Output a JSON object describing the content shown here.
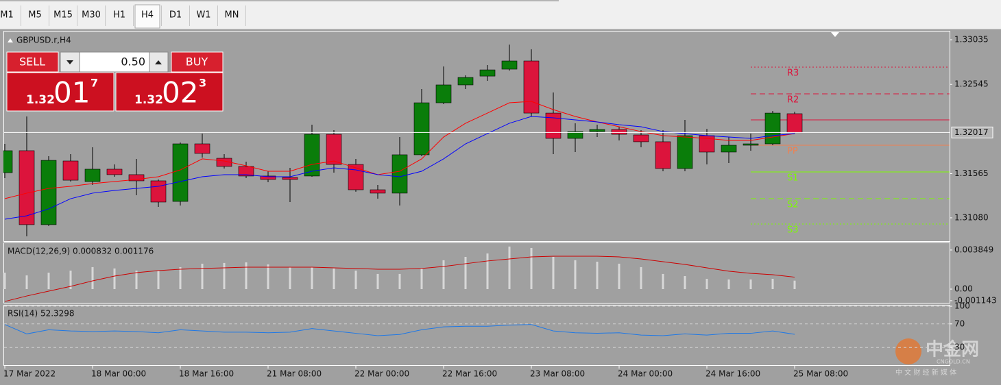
{
  "toolbar": {
    "tabs": [
      "M1",
      "M5",
      "M15",
      "M30",
      "H1",
      "H4",
      "D1",
      "W1",
      "MN"
    ],
    "active_tab": 5
  },
  "trade_panel": {
    "sell": "SELL",
    "buy": "BUY",
    "lot": "0.50",
    "bid": {
      "big": "1.32",
      "pips": "01",
      "fraction": "7"
    },
    "ask": {
      "big": "1.32",
      "pips": "02",
      "fraction": "3"
    }
  },
  "watermark": {
    "logo": "中金网",
    "site": "CNGOLD.CN",
    "tagline": "中 文 财 经 新 媒 体"
  },
  "chart_data": [
    {
      "type": "candlestick",
      "title": "GBPUSD.r,H4",
      "categories": [
        "17 Mar 2022",
        null,
        null,
        null,
        "18 Mar 00:00",
        null,
        null,
        null,
        "18 Mar 16:00",
        null,
        null,
        null,
        "21 Mar 08:00",
        null,
        null,
        null,
        "22 Mar 00:00",
        null,
        null,
        null,
        "22 Mar 16:00",
        null,
        null,
        null,
        "23 Mar 08:00",
        null,
        null,
        null,
        "24 Mar 00:00",
        null,
        null,
        null,
        "24 Mar 16:00",
        null,
        null,
        null,
        "25 Mar 08:00"
      ],
      "open": [
        1.31576,
        1.31817,
        1.31005,
        1.31704,
        1.31478,
        1.31614,
        1.31554,
        1.31486,
        1.3126,
        1.31892,
        1.31734,
        1.31644,
        1.31539,
        1.31523,
        1.31539,
        1.31997,
        1.31666,
        1.31388,
        1.31351,
        1.31772,
        1.32343,
        1.32539,
        1.32636,
        1.32712,
        1.32802,
        1.3223,
        1.31952,
        1.32027,
        1.3205,
        1.3199,
        1.31915,
        1.31621,
        1.31982,
        1.31802,
        1.31877,
        1.31892,
        1.32223
      ],
      "high": [
        1.31892,
        1.32193,
        1.31757,
        1.31779,
        1.31854,
        1.31666,
        1.31727,
        1.31501,
        1.31907,
        1.32005,
        1.31779,
        1.31696,
        1.31591,
        1.31629,
        1.32103,
        1.32042,
        1.31727,
        1.31441,
        1.31967,
        1.32494,
        1.32742,
        1.32644,
        1.32757,
        1.32982,
        1.3293,
        1.32456,
        1.32118,
        1.32103,
        1.3208,
        1.32042,
        1.32042,
        1.32155,
        1.32057,
        1.31967,
        1.32005,
        1.32253,
        1.32245
      ],
      "low": [
        1.31516,
        1.30877,
        1.3099,
        1.31478,
        1.31441,
        1.31531,
        1.31328,
        1.312,
        1.31215,
        1.31742,
        1.31621,
        1.31516,
        1.31471,
        1.31253,
        1.31531,
        1.31576,
        1.31366,
        1.3129,
        1.31215,
        1.31757,
        1.32328,
        1.32494,
        1.32584,
        1.32697,
        1.32193,
        1.31779,
        1.31802,
        1.31967,
        1.3193,
        1.31854,
        1.31591,
        1.31591,
        1.31666,
        1.31681,
        1.31817,
        1.31877,
        1.3201
      ],
      "close": [
        1.31817,
        1.31005,
        1.31711,
        1.31493,
        1.31614,
        1.31554,
        1.31486,
        1.31253,
        1.31892,
        1.31787,
        1.31644,
        1.31539,
        1.31501,
        1.31501,
        1.31997,
        1.31666,
        1.31388,
        1.31351,
        1.31772,
        1.32343,
        1.32539,
        1.32621,
        1.32704,
        1.32802,
        1.3223,
        1.31952,
        1.32027,
        1.3205,
        1.31997,
        1.31915,
        1.31621,
        1.31982,
        1.31802,
        1.31877,
        1.31892,
        1.3223,
        1.32017
      ],
      "up_color": "#0a7d0a",
      "down_color": "#dc143c",
      "overlays": [
        {
          "color": "#ff0000",
          "values": [
            1.3129,
            1.31351,
            1.31403,
            1.31426,
            1.31456,
            1.31478,
            1.31501,
            1.31531,
            1.31606,
            1.31727,
            1.31704,
            1.31651,
            1.31591,
            1.31591,
            1.31666,
            1.31704,
            1.31629,
            1.31554,
            1.31591,
            1.31727,
            1.31967,
            1.32118,
            1.3223,
            1.32343,
            1.32358,
            1.32268,
            1.32193,
            1.32133,
            1.3208,
            1.32027,
            1.31982,
            1.31967,
            1.31952,
            1.3193,
            1.3193,
            1.31967,
            1.32005
          ]
        },
        {
          "color": "#0000ff",
          "values": [
            1.31065,
            1.31102,
            1.31178,
            1.3129,
            1.31351,
            1.31381,
            1.31403,
            1.31426,
            1.31478,
            1.31531,
            1.31554,
            1.31554,
            1.31531,
            1.31531,
            1.31591,
            1.31629,
            1.31606,
            1.31554,
            1.31531,
            1.31591,
            1.31727,
            1.31892,
            1.32005,
            1.32118,
            1.32193,
            1.32178,
            1.32155,
            1.32133,
            1.32103,
            1.3208,
            1.32027,
            1.32005,
            1.31982,
            1.31967,
            1.31952,
            1.31982,
            1.32005
          ]
        }
      ],
      "levels": [
        {
          "label": "R3",
          "value": 1.32734,
          "color": "#dc143c",
          "style": "dotted"
        },
        {
          "label": "R2",
          "value": 1.32441,
          "color": "#dc143c",
          "style": "dashed"
        },
        {
          "value": 1.32155,
          "color": "#dc143c",
          "style": "solid"
        },
        {
          "label": "PP",
          "value": 1.31877,
          "color": "#f08050",
          "style": "solid"
        },
        {
          "label": "S1",
          "value": 1.31584,
          "color": "#7cfc00",
          "style": "solid"
        },
        {
          "label": "S2",
          "value": 1.3129,
          "color": "#7cfc00",
          "style": "dashed"
        },
        {
          "label": "S3",
          "value": 1.31012,
          "color": "#7cfc00",
          "style": "dotted"
        }
      ],
      "bid": {
        "value": 1.32017
      },
      "ylim": [
        1.30824,
        1.33133
      ],
      "yticks": [
        1.33035,
        1.32545,
        1.31565,
        {
          "value": 1.3108,
          "label": "1.31080"
        }
      ]
    },
    {
      "type": "macd",
      "title": "MACD(12,26,9) 0.000832 0.001176",
      "values": [
        0.00162,
        0.00135,
        0.00162,
        0.00182,
        0.00216,
        0.00203,
        0.00182,
        0.00182,
        0.00216,
        0.0025,
        0.00257,
        0.00263,
        0.00243,
        0.00216,
        0.00216,
        0.00203,
        0.00182,
        0.00149,
        0.00149,
        0.00203,
        0.00284,
        0.00317,
        0.00351,
        0.00419,
        0.00405,
        0.00317,
        0.00284,
        0.0027,
        0.0025,
        0.00216,
        0.00149,
        0.00128,
        0.00101,
        0.00095,
        0.00095,
        0.00101,
        0.000832
      ],
      "signal": [
        -0.00122,
        -0.00068,
        -0.0002,
        0.00027,
        0.00081,
        0.00128,
        0.00162,
        0.00182,
        0.00196,
        0.00203,
        0.00209,
        0.00216,
        0.00216,
        0.00216,
        0.00216,
        0.00209,
        0.00203,
        0.00196,
        0.00196,
        0.00203,
        0.00223,
        0.0025,
        0.00277,
        0.00297,
        0.00317,
        0.00324,
        0.00324,
        0.00324,
        0.00317,
        0.00297,
        0.0027,
        0.00243,
        0.00209,
        0.00176,
        0.00155,
        0.00142,
        0.001176
      ],
      "color": "#d8d8d8",
      "signal_color": "#cc0000",
      "ylim": [
        -0.00135,
        0.00452
      ],
      "yticks": [
        0.003849,
        {
          "value": 0,
          "label": "0.00"
        },
        -0.001143
      ]
    },
    {
      "type": "rsi",
      "title": "RSI(14) 52.3298",
      "values": [
        69,
        53,
        60,
        58,
        57,
        58,
        57,
        55,
        60,
        58,
        56,
        56,
        55,
        56,
        62,
        58,
        54,
        50,
        52,
        60,
        65,
        66,
        66,
        68,
        69,
        58,
        55,
        54,
        55,
        51,
        50,
        53,
        51,
        54,
        54,
        58,
        52.3298
      ],
      "color": "#1e78e6",
      "ylim": [
        0,
        100
      ],
      "yticks": [
        100,
        70,
        30
      ],
      "grid": true
    }
  ]
}
